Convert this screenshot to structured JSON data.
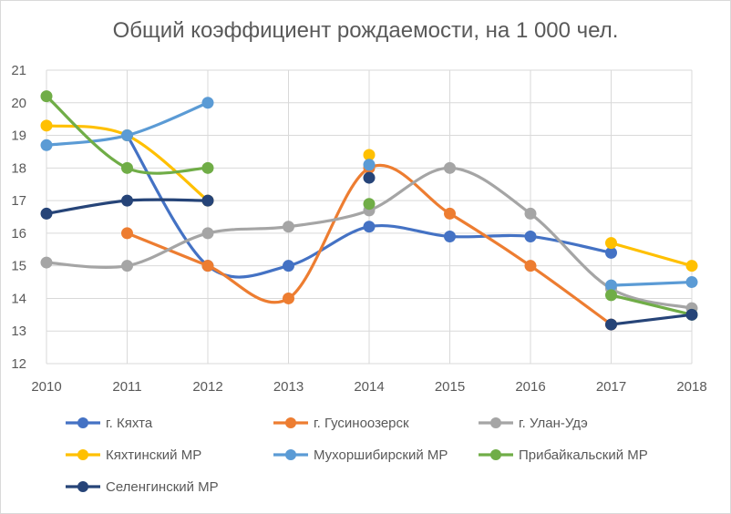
{
  "chart_data": {
    "type": "line",
    "title": "Общий коэффициент рождаемости, на 1 000 чел.",
    "x": [
      "2010",
      "2011",
      "2012",
      "2013",
      "2014",
      "2015",
      "2016",
      "2017",
      "2018"
    ],
    "ylim": [
      12,
      21
    ],
    "yticks": [
      "12",
      "13",
      "14",
      "15",
      "16",
      "17",
      "18",
      "19",
      "20",
      "21"
    ],
    "grid": true,
    "legend_position": "bottom",
    "series": [
      {
        "name": "г. Кяхта",
        "color": "#4472c4",
        "values": [
          null,
          19.0,
          15.0,
          15.0,
          16.2,
          15.9,
          15.9,
          15.4,
          null
        ]
      },
      {
        "name": "г. Гусиноозерск",
        "color": "#ed7d31",
        "values": [
          null,
          16.0,
          15.0,
          14.0,
          18.0,
          16.6,
          15.0,
          13.2,
          null
        ]
      },
      {
        "name": "г. Улан-Удэ",
        "color": "#a5a5a5",
        "values": [
          15.1,
          15.0,
          16.0,
          16.2,
          16.7,
          18.0,
          16.6,
          14.3,
          13.7
        ]
      },
      {
        "name": "Кяхтинский МР",
        "color": "#ffc000",
        "values": [
          19.3,
          19.0,
          17.0,
          null,
          18.4,
          null,
          null,
          15.7,
          15.0
        ]
      },
      {
        "name": "Мухоршибирский МР",
        "color": "#5b9bd5",
        "values": [
          18.7,
          19.0,
          20.0,
          null,
          18.1,
          null,
          null,
          14.4,
          14.5
        ]
      },
      {
        "name": "Прибайкальский МР",
        "color": "#70ad47",
        "values": [
          20.2,
          18.0,
          18.0,
          null,
          16.9,
          null,
          null,
          14.1,
          13.5
        ]
      },
      {
        "name": "Селенгинский МР",
        "color": "#264478",
        "values": [
          16.6,
          17.0,
          17.0,
          null,
          17.7,
          null,
          null,
          13.2,
          13.5
        ]
      }
    ]
  }
}
